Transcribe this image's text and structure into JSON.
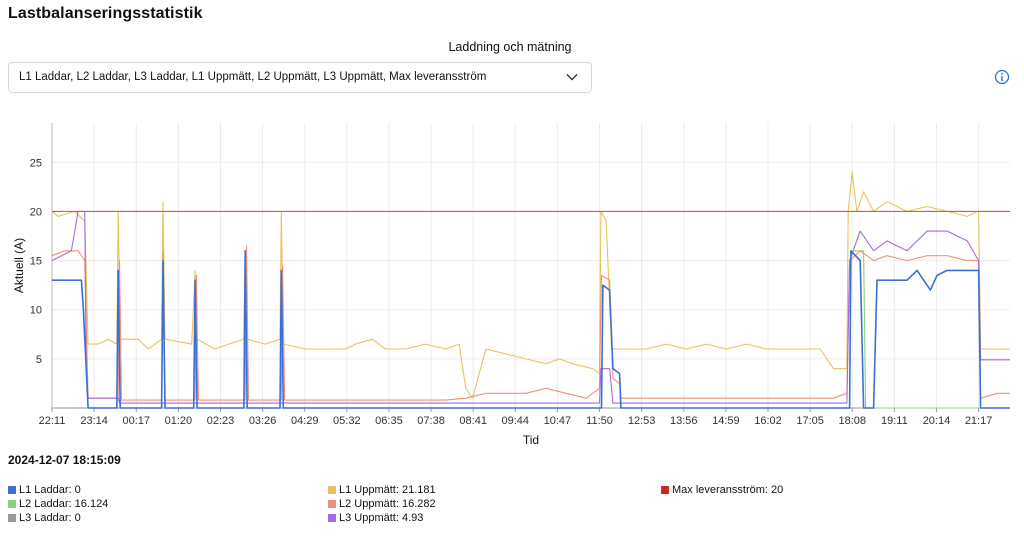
{
  "page": {
    "title": "Lastbalanseringsstatistik",
    "select_label": "Laddning och mätning",
    "select_value": "L1 Laddar, L2 Laddar, L3 Laddar, L1 Uppmätt, L2 Uppmätt, L3 Uppmätt, Max leveransström",
    "timestamp": "2024-12-07 18:15:09",
    "icons": [
      "chevron-down-icon",
      "info-icon"
    ]
  },
  "legend": [
    {
      "label": "L1 Laddar: 0",
      "color": "#3b6fd6"
    },
    {
      "label": "L2 Laddar: 16.124",
      "color": "#8fd07a"
    },
    {
      "label": "L3 Laddar: 0",
      "color": "#9a9a9a"
    },
    {
      "label": "L1 Uppmätt: 21.181",
      "color": "#e8c25a"
    },
    {
      "label": "L2 Uppmätt: 16.282",
      "color": "#f0907a"
    },
    {
      "label": "L3 Uppmätt: 4.93",
      "color": "#a96ad8"
    },
    {
      "label": "Max leveransström: 20",
      "color": "#cc2a2a"
    }
  ],
  "chart_data": {
    "type": "line",
    "xlabel": "Tid",
    "ylabel": "Aktuell (A)",
    "ylim": [
      0,
      29
    ],
    "yticks": [
      5,
      10,
      15,
      20,
      25
    ],
    "x_range": [
      "22:11",
      "22:04"
    ],
    "x_ticks": [
      "22:11",
      "23:14",
      "00:17",
      "01:20",
      "02:23",
      "03:26",
      "04:29",
      "05:32",
      "06:35",
      "07:38",
      "08:41",
      "09:44",
      "10:47",
      "11:50",
      "12:53",
      "13:56",
      "14:59",
      "16:02",
      "17:05",
      "18:08",
      "19:11",
      "20:14",
      "21:17"
    ],
    "grid": true,
    "legend_position": "bottom",
    "series": [
      {
        "name": "L1 Laddar",
        "color": "#3b6fd6",
        "points": [
          [
            "22:11",
            13
          ],
          [
            "22:55",
            13
          ],
          [
            "22:58",
            10
          ],
          [
            "23:05",
            0
          ],
          [
            "23:48",
            0
          ],
          [
            "23:50",
            14
          ],
          [
            "23:53",
            0
          ],
          [
            "00:55",
            0
          ],
          [
            "00:57",
            15
          ],
          [
            "01:00",
            0
          ],
          [
            "01:43",
            0
          ],
          [
            "01:45",
            13
          ],
          [
            "01:48",
            0
          ],
          [
            "02:58",
            0
          ],
          [
            "03:00",
            16
          ],
          [
            "03:03",
            0
          ],
          [
            "03:52",
            0
          ],
          [
            "03:54",
            14
          ],
          [
            "03:57",
            0
          ],
          [
            "11:53",
            0
          ],
          [
            "11:55",
            12.5
          ],
          [
            "12:05",
            12
          ],
          [
            "12:10",
            4
          ],
          [
            "12:20",
            3.5
          ],
          [
            "12:22",
            0
          ],
          [
            "18:04",
            0
          ],
          [
            "18:06",
            16
          ],
          [
            "18:20",
            15
          ],
          [
            "18:25",
            0
          ],
          [
            "18:40",
            0
          ],
          [
            "18:45",
            13
          ],
          [
            "19:30",
            13
          ],
          [
            "19:45",
            14
          ],
          [
            "20:05",
            12
          ],
          [
            "20:15",
            13.5
          ],
          [
            "20:30",
            14
          ],
          [
            "21:10",
            14
          ],
          [
            "21:17",
            14
          ],
          [
            "21:20",
            0
          ],
          [
            "22:04",
            0
          ]
        ]
      },
      {
        "name": "L2 Laddar",
        "color": "#8fd07a",
        "points": [
          [
            "18:04",
            0
          ],
          [
            "18:06",
            16
          ],
          [
            "18:25",
            16
          ],
          [
            "18:28",
            0
          ],
          [
            "22:04",
            0
          ]
        ]
      },
      {
        "name": "L3 Laddar",
        "color": "#9a9a9a",
        "points": [
          [
            "22:11",
            0
          ],
          [
            "22:04",
            0
          ]
        ]
      },
      {
        "name": "L1 Uppmätt",
        "color": "#e8c25a",
        "points": [
          [
            "22:11",
            20
          ],
          [
            "22:20",
            19.5
          ],
          [
            "22:45",
            20
          ],
          [
            "23:00",
            19
          ],
          [
            "23:05",
            6.5
          ],
          [
            "23:20",
            6.5
          ],
          [
            "23:35",
            7
          ],
          [
            "23:48",
            6.5
          ],
          [
            "23:50",
            20
          ],
          [
            "23:53",
            7
          ],
          [
            "00:20",
            7
          ],
          [
            "00:35",
            6
          ],
          [
            "00:55",
            7
          ],
          [
            "00:57",
            21
          ],
          [
            "01:00",
            7
          ],
          [
            "01:40",
            6.5
          ],
          [
            "01:45",
            14
          ],
          [
            "01:48",
            7
          ],
          [
            "02:15",
            6
          ],
          [
            "02:35",
            6.5
          ],
          [
            "02:58",
            7
          ],
          [
            "03:00",
            16
          ],
          [
            "03:03",
            7
          ],
          [
            "03:30",
            6.5
          ],
          [
            "03:52",
            7
          ],
          [
            "03:54",
            20
          ],
          [
            "03:57",
            6.5
          ],
          [
            "04:30",
            6
          ],
          [
            "05:00",
            6
          ],
          [
            "05:30",
            6
          ],
          [
            "05:45",
            6.5
          ],
          [
            "06:10",
            7
          ],
          [
            "06:30",
            6
          ],
          [
            "07:00",
            6
          ],
          [
            "07:30",
            6.5
          ],
          [
            "08:00",
            6
          ],
          [
            "08:20",
            6.5
          ],
          [
            "08:30",
            2
          ],
          [
            "08:35",
            1.5
          ],
          [
            "08:40",
            1
          ],
          [
            "09:00",
            6
          ],
          [
            "09:30",
            5.5
          ],
          [
            "10:00",
            5
          ],
          [
            "10:30",
            4.5
          ],
          [
            "10:50",
            5
          ],
          [
            "11:10",
            4.5
          ],
          [
            "11:40",
            4
          ],
          [
            "11:50",
            3.5
          ],
          [
            "11:52",
            20
          ],
          [
            "12:00",
            19
          ],
          [
            "12:08",
            6
          ],
          [
            "12:20",
            6
          ],
          [
            "12:35",
            6
          ],
          [
            "13:00",
            6
          ],
          [
            "13:30",
            6.5
          ],
          [
            "14:00",
            6
          ],
          [
            "14:30",
            6.5
          ],
          [
            "15:00",
            6
          ],
          [
            "15:30",
            6.5
          ],
          [
            "16:00",
            6
          ],
          [
            "16:30",
            6
          ],
          [
            "17:00",
            6
          ],
          [
            "17:20",
            6
          ],
          [
            "17:40",
            4
          ],
          [
            "18:00",
            4
          ],
          [
            "18:02",
            20
          ],
          [
            "18:08",
            24
          ],
          [
            "18:15",
            20
          ],
          [
            "18:25",
            22
          ],
          [
            "18:40",
            20
          ],
          [
            "19:00",
            21
          ],
          [
            "19:30",
            20
          ],
          [
            "20:00",
            20.5
          ],
          [
            "20:30",
            20
          ],
          [
            "21:00",
            19.5
          ],
          [
            "21:15",
            20
          ],
          [
            "21:17",
            20
          ],
          [
            "21:20",
            6
          ],
          [
            "21:40",
            6
          ],
          [
            "22:04",
            6
          ]
        ]
      },
      {
        "name": "L2 Uppmätt",
        "color": "#f0907a",
        "points": [
          [
            "22:11",
            15.5
          ],
          [
            "22:30",
            16
          ],
          [
            "22:50",
            16
          ],
          [
            "23:00",
            15
          ],
          [
            "23:05",
            1
          ],
          [
            "23:50",
            1
          ],
          [
            "23:52",
            15
          ],
          [
            "23:55",
            0.8
          ],
          [
            "00:55",
            0.8
          ],
          [
            "00:57",
            16
          ],
          [
            "01:00",
            0.8
          ],
          [
            "01:45",
            0.8
          ],
          [
            "01:47",
            13.5
          ],
          [
            "01:50",
            0.8
          ],
          [
            "03:00",
            0.8
          ],
          [
            "03:02",
            16.5
          ],
          [
            "03:05",
            0.8
          ],
          [
            "03:54",
            0.8
          ],
          [
            "03:56",
            14.5
          ],
          [
            "03:59",
            0.8
          ],
          [
            "05:00",
            0.8
          ],
          [
            "06:00",
            0.8
          ],
          [
            "07:00",
            0.8
          ],
          [
            "08:00",
            0.8
          ],
          [
            "08:30",
            1
          ],
          [
            "09:00",
            1.5
          ],
          [
            "09:30",
            1.5
          ],
          [
            "10:00",
            1.5
          ],
          [
            "10:30",
            2
          ],
          [
            "11:00",
            1.5
          ],
          [
            "11:30",
            1
          ],
          [
            "11:50",
            2
          ],
          [
            "11:53",
            13.5
          ],
          [
            "12:05",
            13
          ],
          [
            "12:10",
            3
          ],
          [
            "12:20",
            2.5
          ],
          [
            "12:22",
            1
          ],
          [
            "13:00",
            1
          ],
          [
            "14:00",
            1
          ],
          [
            "15:00",
            1
          ],
          [
            "16:00",
            1
          ],
          [
            "17:00",
            1
          ],
          [
            "17:40",
            1
          ],
          [
            "18:00",
            1.5
          ],
          [
            "18:04",
            15
          ],
          [
            "18:20",
            16
          ],
          [
            "18:40",
            15
          ],
          [
            "19:00",
            15.5
          ],
          [
            "19:30",
            15
          ],
          [
            "20:00",
            15.5
          ],
          [
            "20:30",
            15.5
          ],
          [
            "21:00",
            15
          ],
          [
            "21:17",
            15
          ],
          [
            "21:20",
            1
          ],
          [
            "21:45",
            1.5
          ],
          [
            "22:04",
            1.5
          ]
        ]
      },
      {
        "name": "L3 Uppmätt",
        "color": "#a96ad8",
        "points": [
          [
            "22:11",
            15
          ],
          [
            "22:40",
            16
          ],
          [
            "22:50",
            20
          ],
          [
            "23:00",
            20
          ],
          [
            "23:02",
            4
          ],
          [
            "23:05",
            1
          ],
          [
            "23:50",
            1
          ],
          [
            "23:52",
            0.5
          ],
          [
            "11:50",
            0.5
          ],
          [
            "11:52",
            4
          ],
          [
            "12:05",
            4
          ],
          [
            "12:10",
            0.5
          ],
          [
            "18:00",
            0.5
          ],
          [
            "18:04",
            15
          ],
          [
            "18:20",
            18
          ],
          [
            "18:40",
            16
          ],
          [
            "19:00",
            17
          ],
          [
            "19:30",
            16
          ],
          [
            "20:00",
            18
          ],
          [
            "20:30",
            18
          ],
          [
            "21:00",
            17
          ],
          [
            "21:17",
            15
          ],
          [
            "21:20",
            4.9
          ],
          [
            "22:04",
            4.9
          ]
        ]
      },
      {
        "name": "Max leveransström",
        "color": "#e0534a",
        "points": [
          [
            "22:11",
            20
          ],
          [
            "22:04",
            20
          ]
        ]
      }
    ]
  }
}
